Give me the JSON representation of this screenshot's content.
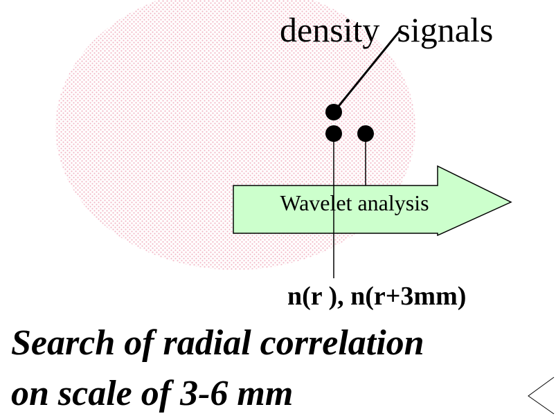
{
  "diagram": {
    "signals_label": "density  signals",
    "arrow_label": "Wavelet analysis",
    "result_label": "n(r ), n(r+3mm)",
    "caption": [
      "Search of radial correlation",
      "on scale of 3-6 mm"
    ]
  }
}
